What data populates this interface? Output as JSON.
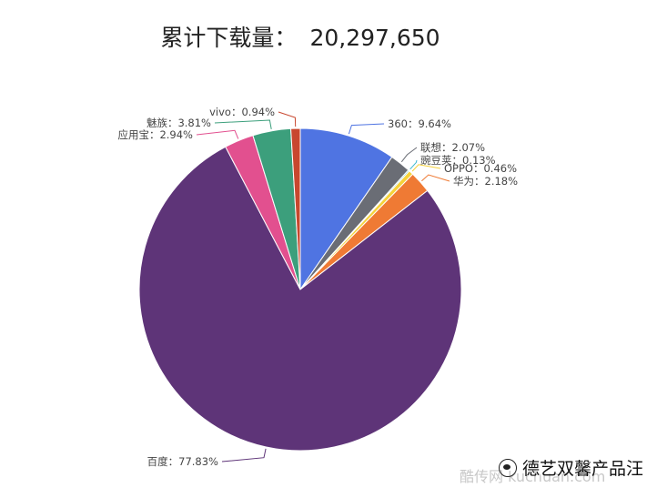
{
  "header": {
    "title_label": "累计下载量：",
    "title_value": "20,297,650"
  },
  "chart_data": {
    "type": "pie",
    "title": "累计下载量： 20,297,650",
    "total": 20297650,
    "slices": [
      {
        "label": "360：9.64%",
        "name": "360",
        "value": 9.64,
        "color": "#4f74e2"
      },
      {
        "label": "联想：2.07%",
        "name": "联想",
        "value": 2.07,
        "color": "#6a6d75"
      },
      {
        "label": "豌豆荚：0.13%",
        "name": "豌豆荚",
        "value": 0.13,
        "color": "#38b6cf"
      },
      {
        "label": "OPPO：0.46%",
        "name": "OPPO",
        "value": 0.46,
        "color": "#f6d23a"
      },
      {
        "label": "华为：2.18%",
        "name": "华为",
        "value": 2.18,
        "color": "#ef7a34"
      },
      {
        "label": "百度：77.83%",
        "name": "百度",
        "value": 77.83,
        "color": "#5e3478"
      },
      {
        "label": "应用宝：2.94%",
        "name": "应用宝",
        "value": 2.94,
        "color": "#e2508f"
      },
      {
        "label": "魅族：3.81%",
        "name": "魅族",
        "value": 3.81,
        "color": "#3c9f7c"
      },
      {
        "label": "vivo：0.94%",
        "name": "vivo",
        "value": 0.94,
        "color": "#c8472f"
      }
    ]
  },
  "watermark": {
    "site_text": "酷传网 kuchuan.com",
    "brand_text": "德艺双馨产品汪"
  }
}
